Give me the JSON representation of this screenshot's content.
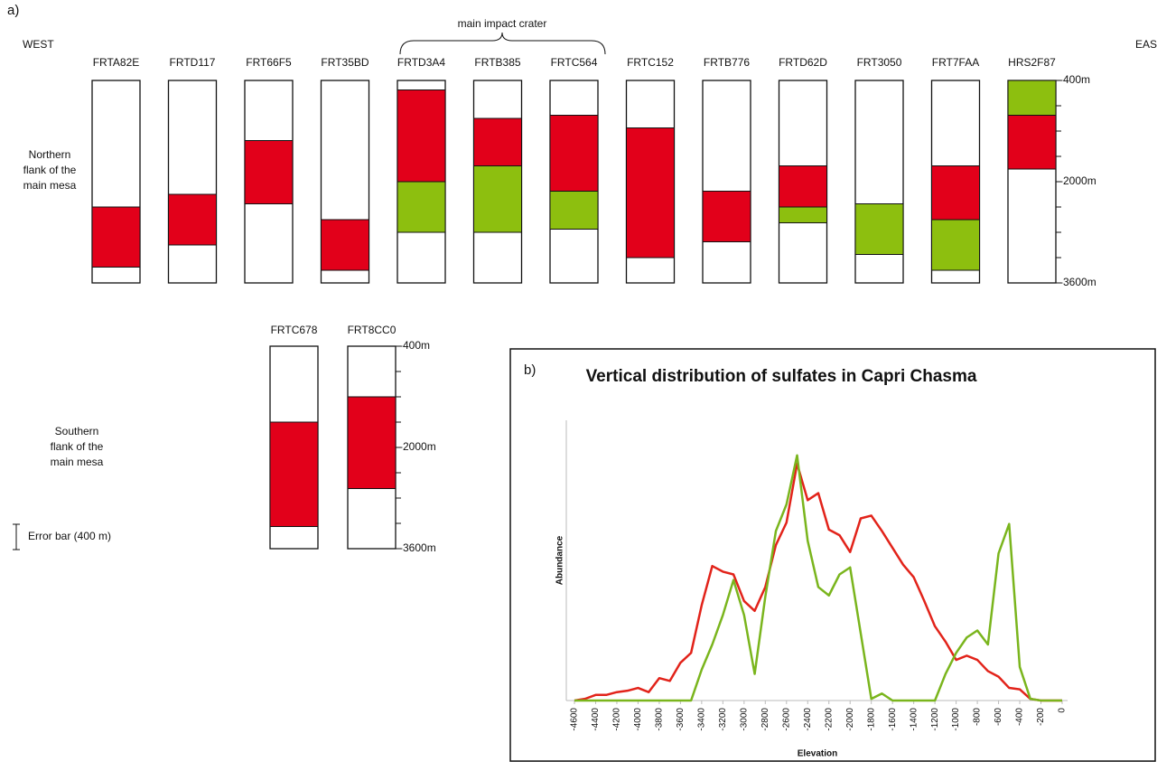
{
  "panel_a": {
    "label": "a)",
    "west": "WEST",
    "east": "EAST",
    "crater_label": "main impact crater",
    "error_bar": "Error bar (400 m)",
    "groups": [
      {
        "label": [
          "Northern",
          "flank of the",
          "main mesa"
        ],
        "ylim": [
          -400,
          -3600
        ],
        "ticks": [
          {
            "value": -400,
            "label": "-400m"
          },
          {
            "value": -2000,
            "label": "-2000m"
          },
          {
            "value": -3600,
            "label": "-3600m"
          }
        ],
        "minor_ticks": [
          -800,
          -1200,
          -1600,
          -2400,
          -2800,
          -3200
        ],
        "columns": [
          {
            "name": "FRTA82E",
            "segments": [
              {
                "color": "#e2001a",
                "top": -2400,
                "bottom": -3350
              }
            ]
          },
          {
            "name": "FRTD117",
            "segments": [
              {
                "color": "#e2001a",
                "top": -2200,
                "bottom": -3000
              }
            ]
          },
          {
            "name": "FRT66F5",
            "segments": [
              {
                "color": "#e2001a",
                "top": -1350,
                "bottom": -2350
              }
            ]
          },
          {
            "name": "FRT35BD",
            "segments": [
              {
                "color": "#e2001a",
                "top": -2600,
                "bottom": -3400
              }
            ]
          },
          {
            "name": "FRTD3A4",
            "segments": [
              {
                "color": "#e2001a",
                "top": -550,
                "bottom": -2000
              },
              {
                "color": "#8dbf0f",
                "top": -2000,
                "bottom": -2800
              }
            ]
          },
          {
            "name": "FRTB385",
            "segments": [
              {
                "color": "#e2001a",
                "top": -1000,
                "bottom": -1750
              },
              {
                "color": "#8dbf0f",
                "top": -1750,
                "bottom": -2800
              }
            ]
          },
          {
            "name": "FRTC564",
            "segments": [
              {
                "color": "#e2001a",
                "top": -950,
                "bottom": -2150
              },
              {
                "color": "#8dbf0f",
                "top": -2150,
                "bottom": -2750
              }
            ]
          },
          {
            "name": "FRTC152",
            "segments": [
              {
                "color": "#e2001a",
                "top": -1150,
                "bottom": -3200
              }
            ]
          },
          {
            "name": "FRTB776",
            "segments": [
              {
                "color": "#e2001a",
                "top": -2150,
                "bottom": -2950
              }
            ]
          },
          {
            "name": "FRTD62D",
            "segments": [
              {
                "color": "#e2001a",
                "top": -1750,
                "bottom": -2400
              },
              {
                "color": "#8dbf0f",
                "top": -2400,
                "bottom": -2650
              }
            ]
          },
          {
            "name": "FRT3050",
            "segments": [
              {
                "color": "#8dbf0f",
                "top": -2350,
                "bottom": -3150
              }
            ]
          },
          {
            "name": "FRT7FAA",
            "segments": [
              {
                "color": "#e2001a",
                "top": -1750,
                "bottom": -2600
              },
              {
                "color": "#8dbf0f",
                "top": -2600,
                "bottom": -3400
              }
            ]
          },
          {
            "name": "HRS2F87",
            "segments": [
              {
                "color": "#8dbf0f",
                "top": -400,
                "bottom": -950
              },
              {
                "color": "#e2001a",
                "top": -950,
                "bottom": -1800
              }
            ]
          }
        ]
      },
      {
        "label": [
          "Southern",
          "flank of the",
          "main mesa"
        ],
        "ylim": [
          -400,
          -3600
        ],
        "ticks": [
          {
            "value": -400,
            "label": "-400m"
          },
          {
            "value": -2000,
            "label": "-2000m"
          },
          {
            "value": -3600,
            "label": "-3600m"
          }
        ],
        "minor_ticks": [
          -800,
          -1200,
          -1600,
          -2400,
          -2800,
          -3200
        ],
        "columns": [
          {
            "name": "FRTC678",
            "segments": [
              {
                "color": "#e2001a",
                "top": -1600,
                "bottom": -3250
              }
            ]
          },
          {
            "name": "FRT8CC0",
            "segments": [
              {
                "color": "#e2001a",
                "top": -1200,
                "bottom": -2650
              }
            ]
          }
        ]
      }
    ]
  },
  "chart_data": {
    "type": "line",
    "label": "b)",
    "title": "Vertical distribution of sulfates in Capri Chasma",
    "x_label": "Elevation",
    "y_label": "Abundance",
    "x": [
      -4600,
      -4500,
      -4400,
      -4300,
      -4200,
      -4100,
      -4000,
      -3900,
      -3800,
      -3700,
      -3600,
      -3500,
      -3400,
      -3300,
      -3200,
      -3100,
      -3000,
      -2900,
      -2800,
      -2700,
      -2600,
      -2500,
      -2400,
      -2300,
      -2200,
      -2100,
      -2000,
      -1900,
      -1800,
      -1700,
      -1600,
      -1500,
      -1400,
      -1300,
      -1200,
      -1100,
      -1000,
      -900,
      -800,
      -700,
      -600,
      -500,
      -400,
      -300,
      -200,
      -100,
      0
    ],
    "xlim": [
      -4600,
      0
    ],
    "xticks": [
      -4600,
      -4400,
      -4200,
      -4000,
      -3800,
      -3600,
      -3400,
      -3200,
      -3000,
      -2800,
      -2600,
      -2400,
      -2200,
      -2000,
      -1800,
      -1600,
      -1400,
      -1200,
      -1000,
      -800,
      -600,
      -400,
      -200,
      0
    ],
    "ylim": [
      0,
      100
    ],
    "series": [
      {
        "color": "#e2231a",
        "values": [
          0,
          0.6,
          2,
          2,
          3,
          3.5,
          4.5,
          3,
          8,
          7,
          13.5,
          17,
          34,
          48,
          46,
          45,
          35.5,
          32,
          40.5,
          55.5,
          63.5,
          84.5,
          71.5,
          74,
          61,
          59,
          53,
          65,
          66,
          60.5,
          54.5,
          48.5,
          44,
          35.5,
          26.5,
          21,
          14.5,
          16,
          14.5,
          10.5,
          8.5,
          4.5,
          4,
          0.6,
          0,
          0,
          0
        ]
      },
      {
        "color": "#7ab51d",
        "values": [
          0,
          0,
          0,
          0,
          0,
          0,
          0,
          0,
          0,
          0,
          0,
          0,
          11,
          20,
          30.5,
          43,
          30.5,
          9.5,
          37,
          60.5,
          70,
          87.5,
          57,
          40.5,
          37.5,
          45,
          47.5,
          24,
          0.6,
          2.5,
          0,
          0,
          0,
          0,
          0,
          9.5,
          17,
          22.5,
          25,
          20,
          52.5,
          63,
          12,
          0.6,
          0,
          0,
          0
        ]
      }
    ]
  }
}
